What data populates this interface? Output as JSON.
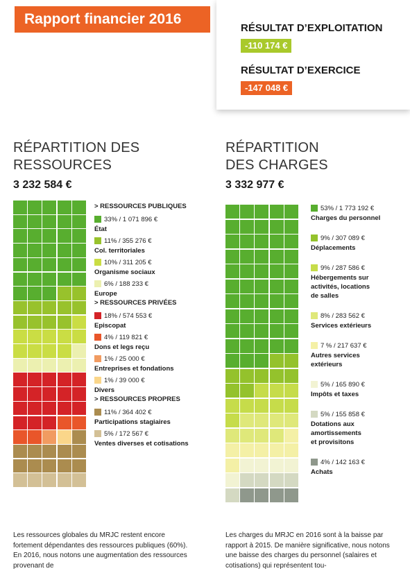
{
  "header": {
    "title": "Rapport financier 2016",
    "colors": {
      "orange": "#ec6325",
      "lime": "#a9c92b"
    }
  },
  "results": {
    "exploitation_label": "RÉSULTAT D’EXPLOITATION",
    "exploitation_value": "-110 174 €",
    "exercice_label": "RÉSULTAT D’EXERCICE",
    "exercice_value": "-147 048 €"
  },
  "chart_data": [
    {
      "type": "waffle",
      "title": "RÉPARTITION DES RESSOURCES",
      "total": "3 232 584 €",
      "groups": [
        {
          "label": "> RESSOURCES PUBLIQUES",
          "items": [
            {
              "value": "33% / 1 071 896 €",
              "name": "État",
              "percent": 33,
              "color": "#58ae2f"
            },
            {
              "value": "11% / 355 276 €",
              "name": "Col. territoriales",
              "percent": 11,
              "color": "#98c22c"
            },
            {
              "value": "10% / 311 205 €",
              "name": "Organisme sociaux",
              "percent": 10,
              "color": "#cadd44"
            },
            {
              "value": "6% / 188 233 €",
              "name": "Europe",
              "percent": 6,
              "color": "#ecf0b0"
            }
          ]
        },
        {
          "label": "> RESSOURCES PRIVÉES",
          "items": [
            {
              "value": "18% / 574 553 €",
              "name": "Episcopat",
              "percent": 18,
              "color": "#d42327"
            },
            {
              "value": "4% / 119 821 €",
              "name": "Dons et legs reçu",
              "percent": 4,
              "color": "#e9562a"
            },
            {
              "value": "1% / 25 000 €",
              "name": "Entreprises et fondations",
              "percent": 1,
              "color": "#f19b61"
            },
            {
              "value": "1% / 39 000 €",
              "name": "Divers",
              "percent": 1,
              "color": "#fad68a"
            }
          ]
        },
        {
          "label": "> RESSOURCES PROPRES",
          "items": [
            {
              "value": "11% / 364 402 €",
              "name": "Participations stagiaires",
              "percent": 11,
              "color": "#ab8c4f"
            },
            {
              "value": "5% / 172 567 €",
              "name": "Ventes diverses et cotisations",
              "percent": 5,
              "color": "#d3c096"
            }
          ]
        }
      ]
    },
    {
      "type": "waffle",
      "title": "RÉPARTITION DES CHARGES",
      "total": "3 332 977 €",
      "groups": [
        {
          "label": "",
          "items": [
            {
              "value": "53% / 1 773 192 €",
              "name": "Charges du personnel",
              "percent": 53,
              "color": "#58ae2f"
            },
            {
              "value": "9% / 307 089 €",
              "name": "Déplacements",
              "percent": 9,
              "color": "#94c22c"
            },
            {
              "value": "9% / 287 586 €",
              "name": "Hébergements sur activités, locations de salles",
              "percent": 9,
              "color": "#c6dc4a"
            },
            {
              "value": "8% / 283 562 €",
              "name": "Services extérieurs",
              "percent": 8,
              "color": "#dfe87a"
            },
            {
              "value": "7 % / 217 637 €",
              "name": "Autres services extérieurs",
              "percent": 7,
              "color": "#f4f0a6"
            },
            {
              "value": "5% / 165 890 €",
              "name": "Impôts et taxes",
              "percent": 5,
              "color": "#f2f3d3"
            },
            {
              "value": "5% / 155 858 €",
              "name": "Dotations aux amortissements et provisitons",
              "percent": 5,
              "color": "#d4d9c2"
            },
            {
              "value": "4% / 142 163 €",
              "name": "Achats",
              "percent": 4,
              "color": "#8f988c"
            }
          ]
        }
      ]
    }
  ],
  "footer": {
    "left_text": "Les ressources globales du MRJC restent encore fortement dépendantes des ressources publiques (60%). En 2016, nous notons une augmentation des ressources provenant de",
    "right_text": "Les charges du MRJC en 2016 sont à la baisse par rapport à 2015. De manière significative, nous notons une baisse des charges du personnel (salaires et cotisations) qui représentent tou-"
  }
}
